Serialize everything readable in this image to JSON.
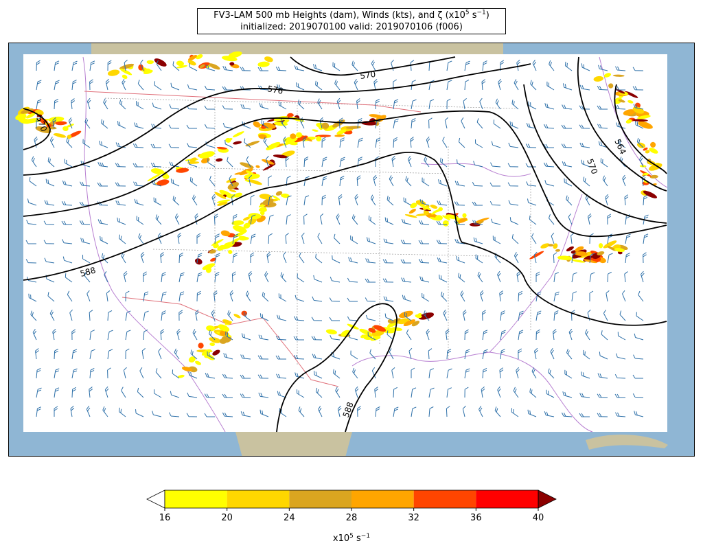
{
  "title": {
    "model": "FV3-LAM",
    "level": "500 mb",
    "line1": "FV3-LAM 500 mb Heights (dam), Winds (kts), and ζ (x10",
    "line1_exp": "5",
    "line1_unit": " s",
    "line1_unit_exp": "−1",
    "line1_close": ")",
    "line2": "initialized: 2019070100 valid: 2019070106 (f006)"
  },
  "map": {
    "fields": [
      "500 mb Heights (dam)",
      "Winds (kts)",
      "Relative vorticity"
    ],
    "contour_labels": [
      "570",
      "576",
      "570",
      "588",
      "570",
      "564",
      "588"
    ],
    "colors": {
      "ocean": "#8fb6d4",
      "land": "#c9c2a0",
      "domain": "#ffffff",
      "contour": "#000000",
      "barb": "#2c6fa8",
      "border": "#b77fd1",
      "state": "#9a9a9a"
    }
  },
  "colorbar": {
    "ticks": [
      "16",
      "20",
      "24",
      "28",
      "32",
      "36",
      "40"
    ],
    "colors": [
      "#ffff00",
      "#ffd700",
      "#daa520",
      "#ffa500",
      "#ff4500",
      "#ff0000"
    ],
    "under_color": "#ffffff",
    "over_color": "#8b0000",
    "label": "x10",
    "label_exp": "5",
    "label_unit": " s",
    "label_unit_exp": "−1"
  }
}
